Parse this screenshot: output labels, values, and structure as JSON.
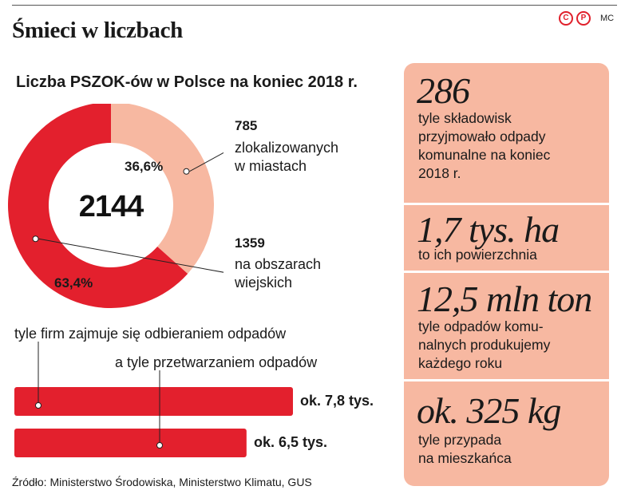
{
  "header": {
    "title": "Śmieci w liczbach",
    "brand_marks": [
      "C",
      "P"
    ],
    "author": "MC"
  },
  "chart_data": [
    {
      "type": "pie",
      "title": "Liczba PSZOK-ów w Polsce na koniec 2018 r.",
      "total_label": "2144",
      "slices": [
        {
          "value": 785,
          "percent_label": "36,6%",
          "label": "zlokalizowanych w miastach",
          "color": "#f7b8a1"
        },
        {
          "value": 1359,
          "percent_label": "63,4%",
          "label": "na obszarach wiejskich",
          "color": "#e3202d"
        }
      ]
    },
    {
      "type": "bar",
      "captions": [
        "tyle firm zajmuje się odbieraniem odpadów",
        "a tyle przetwarzaniem odpadów"
      ],
      "values": [
        7.8,
        6.5
      ],
      "value_labels": [
        "ok. 7,8 tys.",
        "ok. 6,5 tys."
      ],
      "color": "#e3202d"
    }
  ],
  "notes": {
    "cities": {
      "value": "785",
      "lines": [
        "zlokalizowanych",
        "w miastach"
      ]
    },
    "rural": {
      "value": "1359",
      "lines": [
        "na obszarach",
        "wiejskich"
      ]
    }
  },
  "facts": [
    {
      "big": "286",
      "lines": [
        "tyle składowisk",
        "przyjmowało odpady",
        "komunalne na koniec",
        "2018 r."
      ]
    },
    {
      "big": "1,7 tys. ha",
      "lines": [
        "to ich powierzchnia"
      ]
    },
    {
      "big": "12,5 mln ton",
      "lines": [
        "tyle odpadów komu-",
        "nalnych produkujemy",
        "każdego roku"
      ]
    },
    {
      "big": "ok. 325 kg",
      "lines": [
        "tyle przypada",
        "na mieszkańca"
      ]
    }
  ],
  "source": "Źródło: Ministerstwo Środowiska, Ministerstwo Klimatu, GUS",
  "colors": {
    "accent": "#e3202d",
    "panel": "#f7b8a1",
    "text": "#1a1a1a"
  }
}
